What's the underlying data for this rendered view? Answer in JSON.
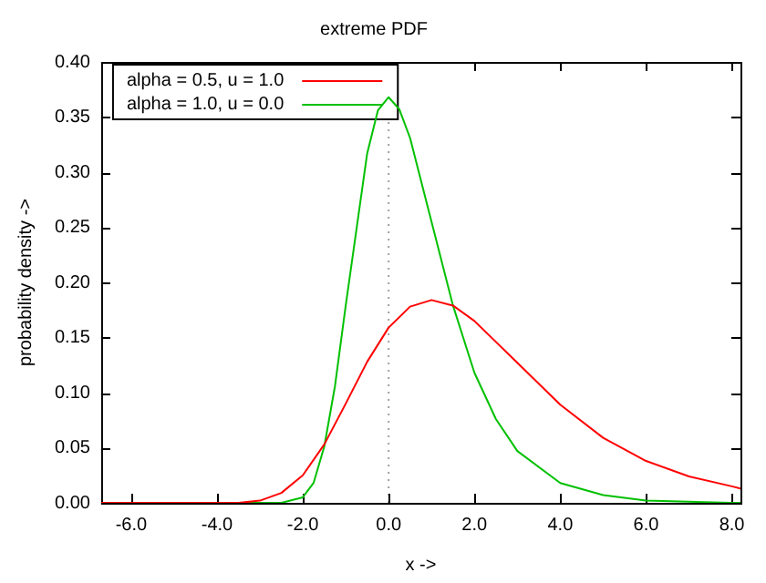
{
  "chart_data": {
    "type": "line",
    "title": "extreme PDF",
    "xlabel": "x ->",
    "ylabel": "probability density ->",
    "xlim": [
      -6.7,
      8.2
    ],
    "ylim": [
      0,
      0.4
    ],
    "xticks": [
      {
        "value": -6,
        "label": "-6.0"
      },
      {
        "value": -4,
        "label": "-4.0"
      },
      {
        "value": -2,
        "label": "-2.0"
      },
      {
        "value": 0,
        "label": "0.0"
      },
      {
        "value": 2,
        "label": "2.0"
      },
      {
        "value": 4,
        "label": "4.0"
      },
      {
        "value": 6,
        "label": "6.0"
      },
      {
        "value": 8,
        "label": "8.0"
      }
    ],
    "yticks": [
      {
        "value": 0,
        "label": "0.00"
      },
      {
        "value": 0.05,
        "label": "0.05"
      },
      {
        "value": 0.1,
        "label": "0.10"
      },
      {
        "value": 0.15,
        "label": "0.15"
      },
      {
        "value": 0.2,
        "label": "0.20"
      },
      {
        "value": 0.25,
        "label": "0.25"
      },
      {
        "value": 0.3,
        "label": "0.30"
      },
      {
        "value": 0.35,
        "label": "0.35"
      },
      {
        "value": 0.4,
        "label": "0.40"
      }
    ],
    "grid": false,
    "legend": "top left",
    "marker": "none",
    "line_style": "solid",
    "ref_lines": [
      {
        "axis": "x",
        "value": 0,
        "color": "#a0a0a0",
        "line_style": "dotted"
      }
    ],
    "series": [
      {
        "name": "alpha = 0.5, u = 1.0",
        "color": "#ff0000",
        "x": [
          -6.7,
          -5,
          -4,
          -3.5,
          -3,
          -2.5,
          -2,
          -1.5,
          -1,
          -0.5,
          0,
          0.5,
          1,
          1.5,
          2,
          3,
          4,
          5,
          6,
          7,
          8,
          8.2
        ],
        "values": [
          0,
          0,
          0,
          0,
          0.002,
          0.009,
          0.025,
          0.053,
          0.09,
          0.128,
          0.159,
          0.178,
          0.184,
          0.179,
          0.165,
          0.127,
          0.089,
          0.059,
          0.038,
          0.024,
          0.015,
          0.013
        ]
      },
      {
        "name": "alpha = 1.0, u = 0.0",
        "color": "#00c000",
        "x": [
          -6.7,
          -3,
          -2.5,
          -2,
          -1.75,
          -1.5,
          -1.25,
          -1,
          -0.5,
          -0.25,
          0,
          0.25,
          0.5,
          1,
          1.5,
          2,
          2.5,
          3,
          4,
          5,
          6,
          7,
          8,
          8.2
        ],
        "values": [
          0,
          0,
          0,
          0.005,
          0.018,
          0.051,
          0.106,
          0.179,
          0.317,
          0.356,
          0.368,
          0.357,
          0.331,
          0.255,
          0.179,
          0.118,
          0.076,
          0.047,
          0.018,
          0.007,
          0.002,
          0.001,
          0,
          0
        ]
      }
    ]
  }
}
